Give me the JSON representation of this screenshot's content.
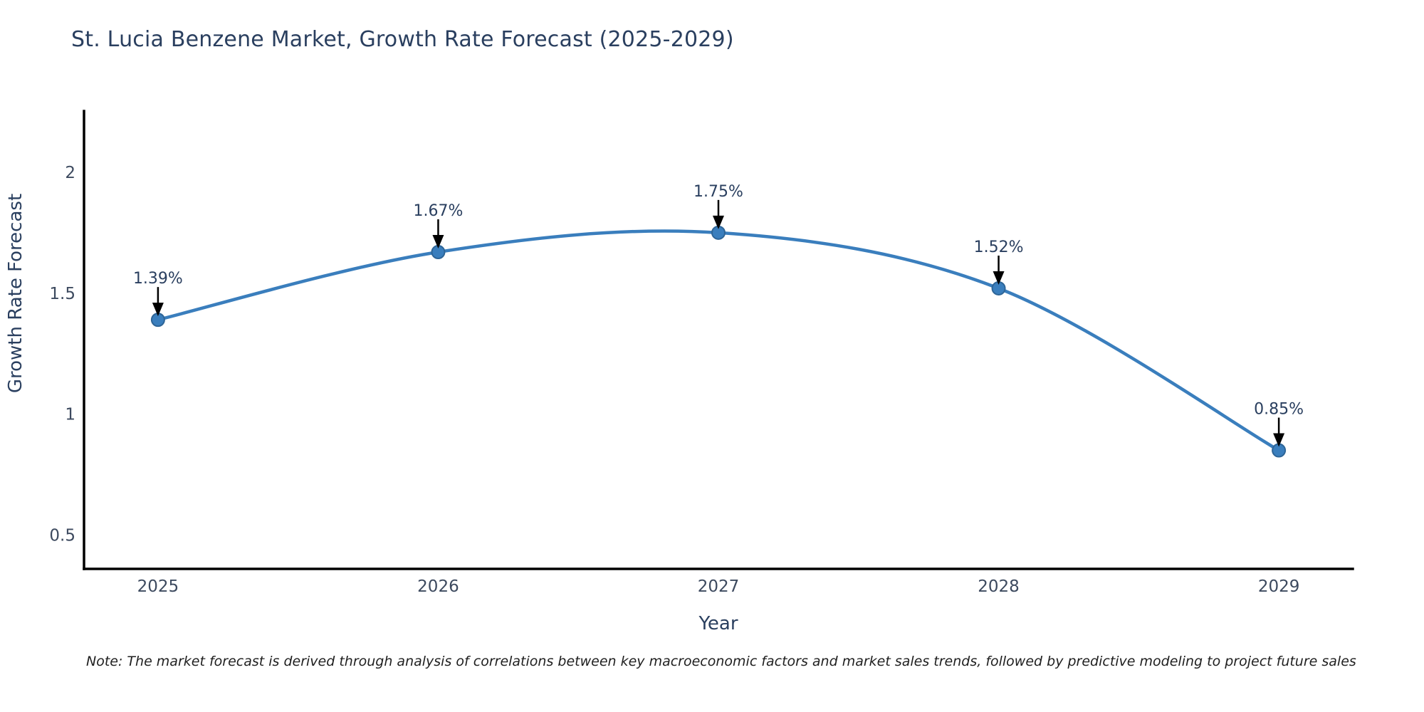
{
  "page": {
    "background": "#ffffff"
  },
  "note": "Note: The market forecast is derived through analysis of correlations between key macroeconomic factors and market sales trends, followed by predictive modeling to project future sales",
  "chart_data": {
    "type": "line",
    "title": "St. Lucia Benzene Market, Growth Rate Forecast (2025-2029)",
    "xlabel": "Year",
    "ylabel": "Growth Rate Forecast",
    "x": [
      2025,
      2026,
      2027,
      2028,
      2029
    ],
    "series": [
      {
        "name": "Growth Rate Forecast",
        "values": [
          1.39,
          1.67,
          1.75,
          1.52,
          0.85
        ],
        "point_labels": [
          "1.39%",
          "1.67%",
          "1.75%",
          "1.52%",
          "0.85%"
        ]
      }
    ],
    "yticks": [
      0.5,
      1,
      1.5,
      2
    ],
    "ytick_labels": [
      "0.5",
      "1",
      "1.5",
      "2"
    ],
    "ylim": [
      0.36,
      2.25
    ],
    "xlim": [
      2024.736,
      2029.264
    ],
    "grid": false,
    "legend": false,
    "line_shape": "spline",
    "annotations_have_arrows": true,
    "colors": {
      "line": "#3a7ebd",
      "marker_fill": "#3a7ebd",
      "marker_edge": "#2e6597",
      "axis": "#000000",
      "arrow": "#000000",
      "title_text": "#2a3f5f",
      "tick_text": "#3d4a5f",
      "annotation_text": "#2a3f5f",
      "note_text": "#1f1f1f",
      "background": "#ffffff"
    }
  }
}
